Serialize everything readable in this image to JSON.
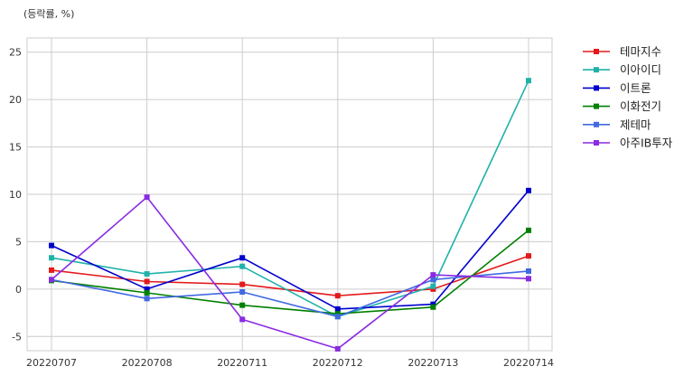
{
  "chart_data": {
    "type": "line",
    "unit_label": "(등락률, %)",
    "categories": [
      "20220707",
      "20220708",
      "20220711",
      "20220712",
      "20220713",
      "20220714"
    ],
    "ylim": [
      -6.5,
      26.5
    ],
    "yticks": [
      -5,
      0,
      5,
      10,
      15,
      20,
      25
    ],
    "grid": true,
    "legend_position": "top-right outside",
    "series": [
      {
        "name": "테마지수",
        "color": "#e31a1c",
        "values": [
          2.0,
          0.8,
          0.5,
          -0.7,
          0.0,
          3.5
        ]
      },
      {
        "name": "이아이디",
        "color": "#20b2aa",
        "values": [
          3.3,
          1.6,
          2.4,
          -2.9,
          0.3,
          22.0
        ]
      },
      {
        "name": "이트론",
        "color": "#0000cd",
        "values": [
          4.6,
          0.0,
          3.3,
          -2.1,
          -1.6,
          10.4
        ]
      },
      {
        "name": "이화전기",
        "color": "#008000",
        "values": [
          0.9,
          -0.4,
          -1.7,
          -2.6,
          -1.9,
          6.2
        ]
      },
      {
        "name": "제테마",
        "color": "#4169e1",
        "values": [
          1.0,
          -1.0,
          -0.3,
          -2.9,
          1.0,
          1.9
        ]
      },
      {
        "name": "아주IB투자",
        "color": "#8a2be2",
        "values": [
          1.0,
          9.7,
          -3.2,
          -6.3,
          1.5,
          1.1
        ]
      }
    ]
  }
}
